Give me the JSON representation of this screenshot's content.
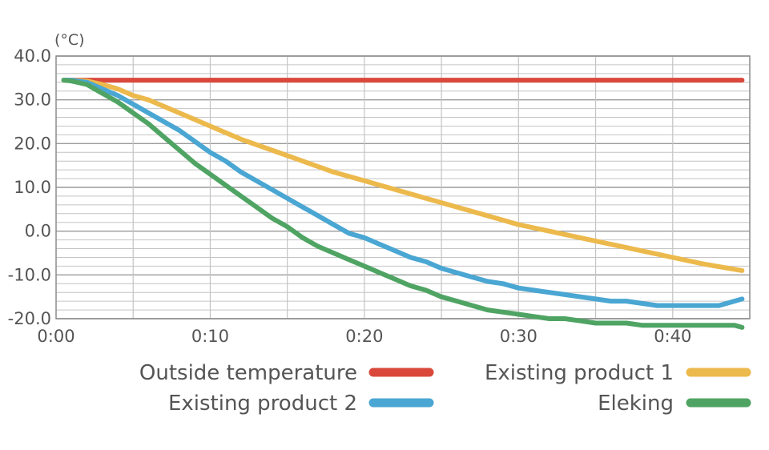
{
  "chart_data": {
    "type": "line",
    "y_unit_label": "(°C)",
    "xlabel": "",
    "ylabel": "",
    "xlim": [
      0,
      45
    ],
    "ylim": [
      -20,
      40
    ],
    "x_ticks": [
      {
        "value": 0,
        "label": "0:00"
      },
      {
        "value": 10,
        "label": "0:10"
      },
      {
        "value": 20,
        "label": "0:20"
      },
      {
        "value": 30,
        "label": "0:30"
      },
      {
        "value": 40,
        "label": "0:40"
      }
    ],
    "y_ticks": [
      {
        "value": 40,
        "label": "40.0"
      },
      {
        "value": 30,
        "label": "30.0"
      },
      {
        "value": 20,
        "label": "20.0"
      },
      {
        "value": 10,
        "label": "10.0"
      },
      {
        "value": 0,
        "label": "0.0"
      },
      {
        "value": -10,
        "label": "-10.0"
      },
      {
        "value": -20,
        "label": "-20.0"
      }
    ],
    "grid": true,
    "legend_position": "bottom",
    "series": [
      {
        "name": "Outside temperature",
        "color": "#d9483b",
        "x": [
          0.5,
          1,
          5,
          10,
          15,
          20,
          25,
          30,
          35,
          40,
          44.5
        ],
        "y": [
          34.5,
          34.5,
          34.5,
          34.5,
          34.5,
          34.5,
          34.5,
          34.5,
          34.5,
          34.5,
          34.5
        ]
      },
      {
        "name": "Existing product 1",
        "color": "#ecb94c",
        "x": [
          0.5,
          1,
          2,
          3,
          4,
          5,
          6,
          7,
          8,
          9,
          10,
          12,
          14,
          16,
          18,
          20,
          22,
          24,
          26,
          28,
          30,
          32,
          34,
          36,
          38,
          40,
          42,
          44.5
        ],
        "y": [
          34.5,
          34.5,
          34.3,
          33.5,
          32.5,
          31,
          30,
          28.5,
          27,
          25.5,
          24,
          21,
          18.5,
          16,
          13.5,
          11.5,
          9.5,
          7.5,
          5.5,
          3.5,
          1.5,
          0,
          -1.5,
          -3,
          -4.5,
          -6,
          -7.5,
          -9
        ]
      },
      {
        "name": "Existing product 2",
        "color": "#4aa6d2",
        "x": [
          0.5,
          1,
          2,
          3,
          4,
          5,
          6,
          7,
          8,
          9,
          10,
          11,
          12,
          13,
          14,
          15,
          16,
          17,
          18,
          19,
          20,
          21,
          22,
          23,
          24,
          25,
          26,
          27,
          28,
          29,
          30,
          31,
          32,
          33,
          34,
          35,
          36,
          37,
          38,
          39,
          40,
          41,
          42,
          43,
          44,
          44.5
        ],
        "y": [
          34.5,
          34.5,
          34,
          32.5,
          31,
          29,
          27,
          25,
          23,
          20.5,
          18,
          16,
          13.5,
          11.5,
          9.5,
          7.5,
          5.5,
          3.5,
          1.5,
          -0.5,
          -1.5,
          -3,
          -4.5,
          -6,
          -7,
          -8.5,
          -9.5,
          -10.5,
          -11.5,
          -12,
          -13,
          -13.5,
          -14,
          -14.5,
          -15,
          -15.5,
          -16,
          -16,
          -16.5,
          -17,
          -17,
          -17,
          -17,
          -17,
          -16,
          -15.5
        ]
      },
      {
        "name": "Eleking",
        "color": "#4fa463",
        "x": [
          0.5,
          1,
          2,
          3,
          4,
          5,
          6,
          7,
          8,
          9,
          10,
          11,
          12,
          13,
          14,
          15,
          16,
          17,
          18,
          19,
          20,
          21,
          22,
          23,
          24,
          25,
          26,
          27,
          28,
          29,
          30,
          31,
          32,
          33,
          34,
          35,
          36,
          37,
          38,
          39,
          40,
          41,
          42,
          43,
          44,
          44.5
        ],
        "y": [
          34.5,
          34.3,
          33.5,
          31.5,
          29.5,
          27,
          24.5,
          21.5,
          18.5,
          15.5,
          13,
          10.5,
          8,
          5.5,
          3,
          1,
          -1.5,
          -3.5,
          -5,
          -6.5,
          -8,
          -9.5,
          -11,
          -12.5,
          -13.5,
          -15,
          -16,
          -17,
          -18,
          -18.5,
          -19,
          -19.5,
          -20,
          -20,
          -20.5,
          -21,
          -21,
          -21,
          -21.5,
          -21.5,
          -21.5,
          -21.5,
          -21.5,
          -21.5,
          -21.5,
          -22
        ]
      }
    ]
  }
}
